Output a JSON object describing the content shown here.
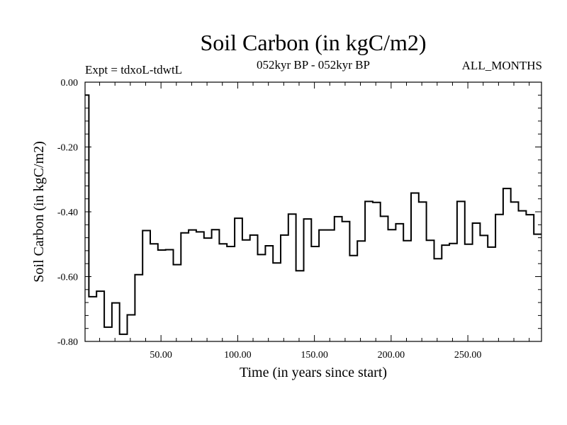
{
  "chart_data": {
    "type": "line",
    "title": "Soil Carbon (in kgC/m2)",
    "experiment_label": "Expt = tdxoL-tdwtL",
    "period_label": "052kyr BP - 052kyr BP",
    "months_label": "ALL_MONTHS",
    "xlabel": "Time (in years since start)",
    "ylabel": "Soil Carbon (in kgC/m2)",
    "xlim": [
      0.5,
      298
    ],
    "ylim": [
      -0.8,
      0.0
    ],
    "grid": false,
    "line_style": "steps",
    "x_ticks": [
      50,
      100,
      150,
      200,
      250
    ],
    "x_tick_labels": [
      "50.00",
      "100.00",
      "150.00",
      "200.00",
      "250.00"
    ],
    "y_ticks": [
      0.0,
      -0.2,
      -0.4,
      -0.6,
      -0.8
    ],
    "y_tick_labels": [
      "0.00",
      "-0.20",
      "-0.40",
      "-0.60",
      "-0.80"
    ],
    "series": [
      {
        "step_width": 5,
        "x": [
          3,
          8,
          13,
          18,
          23,
          28,
          33,
          38,
          43,
          48,
          53,
          58,
          63,
          68,
          73,
          78,
          83,
          88,
          93,
          98,
          103,
          108,
          113,
          118,
          123,
          128,
          133,
          138,
          143,
          148,
          153,
          158,
          163,
          168,
          173,
          178,
          183,
          188,
          193,
          198,
          203,
          208,
          213,
          218,
          223,
          228,
          233,
          238,
          243,
          248,
          253,
          258,
          263,
          268,
          273,
          278,
          283,
          288,
          293,
          298
        ],
        "values": [
          -0.04,
          -0.662,
          -0.645,
          -0.756,
          -0.681,
          -0.778,
          -0.718,
          -0.594,
          -0.458,
          -0.499,
          -0.518,
          -0.517,
          -0.563,
          -0.465,
          -0.456,
          -0.462,
          -0.481,
          -0.455,
          -0.499,
          -0.507,
          -0.42,
          -0.487,
          -0.472,
          -0.532,
          -0.505,
          -0.558,
          -0.472,
          -0.407,
          -0.582,
          -0.422,
          -0.507,
          -0.456,
          -0.456,
          -0.415,
          -0.43,
          -0.535,
          -0.49,
          -0.368,
          -0.371,
          -0.414,
          -0.455,
          -0.437,
          -0.489,
          -0.342,
          -0.37,
          -0.488,
          -0.545,
          -0.503,
          -0.498,
          -0.368,
          -0.5,
          -0.435,
          -0.473,
          -0.509,
          -0.408,
          -0.328,
          -0.37,
          -0.397,
          -0.409,
          -0.469
        ]
      }
    ]
  }
}
